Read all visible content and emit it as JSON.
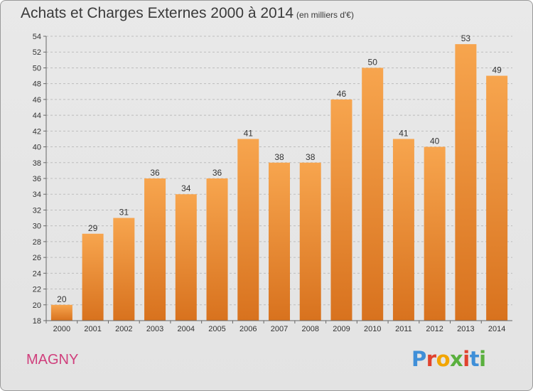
{
  "header": {
    "title": "Achats et Charges Externes 2000 à 2014",
    "subtitle": "(en milliers d'€)"
  },
  "footer": {
    "city": "MAGNY",
    "logo_text": "Proxiti",
    "logo_colors": [
      "#3f8fd8",
      "#e0432f",
      "#f2a500",
      "#5ab03e",
      "#e0432f",
      "#3f8fd8",
      "#5ab03e"
    ]
  },
  "colors": {
    "bar_top": "#f7a54e",
    "bar_bottom": "#d8721e",
    "grid": "#bdbdbd",
    "axis": "#666666"
  },
  "chart_data": {
    "type": "bar",
    "title": "Achats et Charges Externes 2000 à 2014",
    "xlabel": "",
    "ylabel": "",
    "categories": [
      "2000",
      "2001",
      "2002",
      "2003",
      "2004",
      "2005",
      "2006",
      "2007",
      "2008",
      "2009",
      "2010",
      "2011",
      "2012",
      "2013",
      "2014"
    ],
    "values": [
      20,
      29,
      31,
      36,
      34,
      36,
      41,
      38,
      38,
      46,
      50,
      41,
      40,
      53,
      49
    ],
    "ylim": [
      18,
      54
    ],
    "ytick_step": 2,
    "grid": true
  }
}
